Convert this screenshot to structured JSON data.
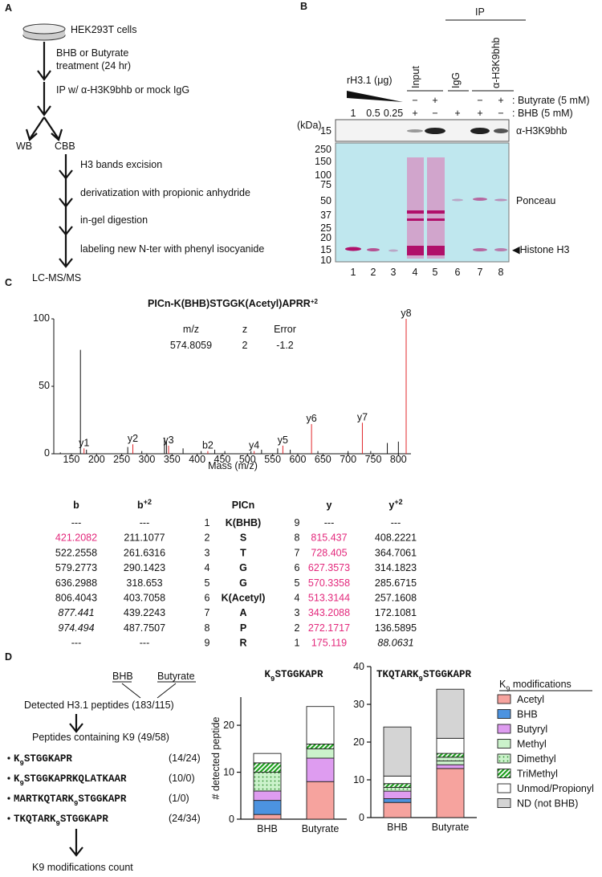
{
  "panel_a": {
    "label": "A",
    "steps": [
      "HEK293T cells",
      "BHB or Butyrate",
      "treatment (24 hr)",
      "IP w/ α-H3K9bhb or mock IgG",
      "WB",
      "CBB",
      "H3 bands excision",
      "derivatization with propionic anhydride",
      "in-gel digestion",
      "labeling new N-ter with phenyl isocyanide",
      "LC-MS/MS"
    ]
  },
  "panel_b": {
    "label": "B",
    "ip": "IP",
    "rh3": "rH3.1 (μg)",
    "groups": [
      "Input",
      "IgG",
      "α-H3K9bhb"
    ],
    "butyrate_row": [
      "−",
      "+",
      "−",
      "+"
    ],
    "butyrate_label": ": Butyrate (5 mM)",
    "bhb_row": [
      "1",
      "0.5",
      "0.25",
      "+",
      "−",
      "+",
      "+",
      "−"
    ],
    "bhb_label": ": BHB (5 mM)",
    "kda": "(kDa)",
    "wb_marker": "15",
    "wb_label": "α-H3K9bhb",
    "markers": [
      "250",
      "150",
      "100",
      "75",
      "50",
      "37",
      "25",
      "20",
      "15",
      "10"
    ],
    "ponceau": "Ponceau",
    "histone": "◀Histone H3",
    "lanes": [
      "1",
      "2",
      "3",
      "4",
      "5",
      "6",
      "7",
      "8"
    ]
  },
  "panel_c": {
    "label": "C",
    "table": {
      "headers": [
        [
          "b"
        ],
        [
          "b",
          "+2"
        ],
        [
          "PICn"
        ],
        [
          "y"
        ],
        [
          "y",
          "+2"
        ]
      ],
      "rows": [
        [
          "---",
          "---",
          "1",
          "K(BHB)",
          "9",
          "---",
          "---"
        ],
        [
          "421.2082",
          "211.1077",
          "2",
          "S",
          "8",
          "815.437",
          "408.2221"
        ],
        [
          "522.2558",
          "261.6316",
          "3",
          "T",
          "7",
          "728.405",
          "364.7061"
        ],
        [
          "579.2773",
          "290.1423",
          "4",
          "G",
          "6",
          "627.3573",
          "314.1823"
        ],
        [
          "636.2988",
          "318.653",
          "5",
          "G",
          "5",
          "570.3358",
          "285.6715"
        ],
        [
          "806.4043",
          "403.7058",
          "6",
          "K(Acetyl)",
          "4",
          "513.3144",
          "257.1608"
        ],
        [
          "877.441",
          "439.2243",
          "7",
          "A",
          "3",
          "343.2088",
          "172.1081"
        ],
        [
          "974.494",
          "487.7507",
          "8",
          "P",
          "2",
          "272.1717",
          "136.5895"
        ],
        [
          "---",
          "---",
          "9",
          "R",
          "1",
          "175.119",
          "88.0631"
        ]
      ],
      "highlight_color": "#e3277b",
      "highlight_cells": [
        [
          1,
          0
        ],
        [
          1,
          5
        ],
        [
          2,
          5
        ],
        [
          3,
          5
        ],
        [
          4,
          5
        ],
        [
          5,
          5
        ],
        [
          6,
          5
        ],
        [
          7,
          5
        ],
        [
          8,
          5
        ]
      ],
      "italic_cells": [
        [
          6,
          0
        ],
        [
          7,
          0
        ],
        [
          8,
          6
        ]
      ]
    }
  },
  "panel_d": {
    "label": "D",
    "bhb": "BHB",
    "butyrate": "Butyrate",
    "detected": "Detected H3.1 peptides (183/115)",
    "containing": "Peptides containing K9 (49/58)",
    "peptides": [
      {
        "name": [
          "K",
          "9",
          "STGGKAPR"
        ],
        "count": "(14/24)"
      },
      {
        "name": [
          "K",
          "9",
          "STGGKAPRKQLATKAAR"
        ],
        "count": "(10/0)"
      },
      {
        "name": [
          "MARTKQTARK",
          "9",
          "STGGKAPR"
        ],
        "count": "(1/0)"
      },
      {
        "name": [
          "TKQTARK",
          "9",
          "STGGKAPR"
        ],
        "count": "(24/34)"
      }
    ],
    "result": "K9 modifications count"
  },
  "chart_data": [
    {
      "type": "spectrum",
      "title": "PICn-K(BHB)STGGK(Acetyl)APRR",
      "title_sup": "+2",
      "x_label": "Mass (m/z)",
      "xlim": [
        115,
        825
      ],
      "xticks": [
        150,
        200,
        250,
        300,
        350,
        400,
        450,
        500,
        550,
        600,
        650,
        700,
        750,
        800
      ],
      "ylim": [
        0,
        100
      ],
      "yticks": [
        0,
        50,
        100
      ],
      "annotation": {
        "headers": [
          "m/z",
          "z",
          "Error"
        ],
        "values": [
          "574.8059",
          "2",
          "-1.2"
        ]
      },
      "series": [
        {
          "color": "#e0262b",
          "x": [
            175.119,
            272.1717,
            343.2088,
            421.2082,
            513.3144,
            570.3358,
            627.3573,
            728.405,
            815.437
          ],
          "values": [
            4,
            7,
            6,
            2,
            2,
            6,
            22,
            23,
            100
          ],
          "labels": [
            "y1",
            "y2",
            "y3",
            "b2",
            "y4",
            "y5",
            "y6",
            "y7",
            "y8"
          ]
        },
        {
          "color": "#111111",
          "x": [
            128,
            168,
            180,
            262,
            290,
            335,
            339,
            372,
            408,
            435,
            455,
            507,
            528,
            560,
            585,
            640,
            700,
            745,
            778,
            800
          ],
          "values": [
            1,
            77,
            3,
            5,
            2,
            12,
            9,
            4,
            2,
            3,
            2,
            2,
            3,
            4,
            3,
            2,
            2,
            2,
            8,
            9
          ]
        }
      ]
    },
    {
      "type": "stacked_bar",
      "y_label": "# detected peptide",
      "legend_title": [
        "K",
        "9",
        " modifications"
      ],
      "series": [
        {
          "name": "Acetyl",
          "color": "#f6a39e"
        },
        {
          "name": "BHB",
          "color": "#4c93e0"
        },
        {
          "name": "Butyryl",
          "color": "#de9cf0"
        },
        {
          "name": "Methyl",
          "color": "#cbf2cb"
        },
        {
          "name": "Dimethyl",
          "color": "#cbf2cb",
          "pattern": "dots"
        },
        {
          "name": "TriMethyl",
          "color": "#1b9e1b",
          "pattern": "hatch"
        },
        {
          "name": "Unmod/Propionyl",
          "color": "#ffffff"
        },
        {
          "name": "ND (not BHB)",
          "color": "#d4d4d4"
        }
      ],
      "subplots": [
        {
          "title": [
            "K",
            "9",
            "STGGKAPR"
          ],
          "categories": [
            "BHB",
            "Butyrate"
          ],
          "ylim": [
            0,
            26
          ],
          "yticks": [
            0,
            10,
            20
          ],
          "values": [
            [
              1,
              8
            ],
            [
              3,
              0
            ],
            [
              2,
              5
            ],
            [
              0,
              2
            ],
            [
              4,
              0
            ],
            [
              2,
              1
            ],
            [
              2,
              8
            ],
            [
              0,
              0
            ]
          ]
        },
        {
          "title": [
            "TKQTARK",
            "9",
            "STGGKAPR"
          ],
          "categories": [
            "BHB",
            "Butyrate"
          ],
          "ylim": [
            0,
            40
          ],
          "yticks": [
            0,
            10,
            20,
            30,
            40
          ],
          "values": [
            [
              4,
              13
            ],
            [
              1,
              0
            ],
            [
              2,
              1
            ],
            [
              0,
              1
            ],
            [
              1,
              1
            ],
            [
              1,
              1
            ],
            [
              2,
              4
            ],
            [
              13,
              13
            ]
          ]
        }
      ]
    }
  ]
}
